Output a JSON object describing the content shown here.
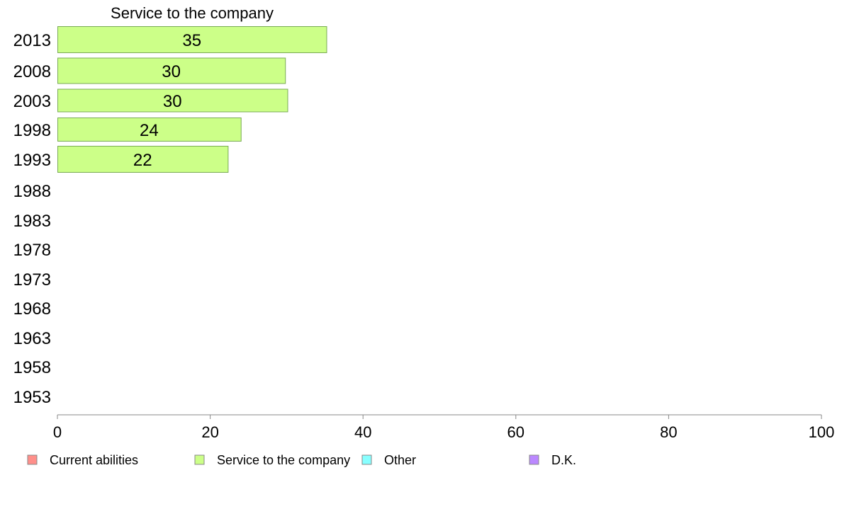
{
  "chart_data": {
    "type": "bar",
    "orientation": "horizontal",
    "title": "Service to the company",
    "categories": [
      "2013",
      "2008",
      "2003",
      "1998",
      "1993",
      "1988",
      "1983",
      "1978",
      "1973",
      "1968",
      "1963",
      "1958",
      "1953"
    ],
    "series": [
      {
        "name": "Service to the company",
        "values": [
          35.2,
          29.8,
          30.1,
          24.0,
          22.3,
          null,
          null,
          null,
          null,
          null,
          null,
          null,
          null
        ],
        "labels": [
          "35",
          "30",
          "30",
          "24",
          "22",
          "",
          "",
          "",
          "",
          "",
          "",
          "",
          ""
        ],
        "color": "#ccff88"
      }
    ],
    "xlim": [
      0,
      100
    ],
    "xticks": [
      "0",
      "20",
      "40",
      "60",
      "80",
      "100"
    ],
    "grid": false,
    "legend": {
      "placement": "bottom",
      "entries": [
        {
          "label": "Current abilities",
          "color": "#ff8f8a"
        },
        {
          "label": "Service to the company",
          "color": "#ccff88"
        },
        {
          "label": "Other",
          "color": "#88ffff"
        },
        {
          "label": "D.K.",
          "color": "#bb88ff"
        }
      ]
    }
  }
}
